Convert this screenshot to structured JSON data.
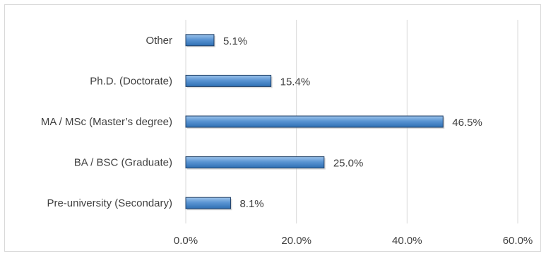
{
  "chart_data": {
    "type": "bar",
    "orientation": "horizontal",
    "categories": [
      "Other",
      "Ph.D. (Doctorate)",
      "MA / MSc (Master’s degree)",
      "BA / BSC (Graduate)",
      "Pre-university (Secondary)"
    ],
    "values": [
      5.1,
      15.4,
      46.5,
      25.0,
      8.1
    ],
    "value_labels": [
      "5.1%",
      "15.4%",
      "46.5%",
      "25.0%",
      "8.1%"
    ],
    "xticks": [
      "0.0%",
      "20.0%",
      "40.0%",
      "60.0%"
    ],
    "xlim": [
      0,
      60
    ],
    "grid": "vertical",
    "bar_color": "#4a86c8",
    "bar_border_color": "#1f3f66",
    "title": "",
    "xlabel": "",
    "ylabel": ""
  }
}
